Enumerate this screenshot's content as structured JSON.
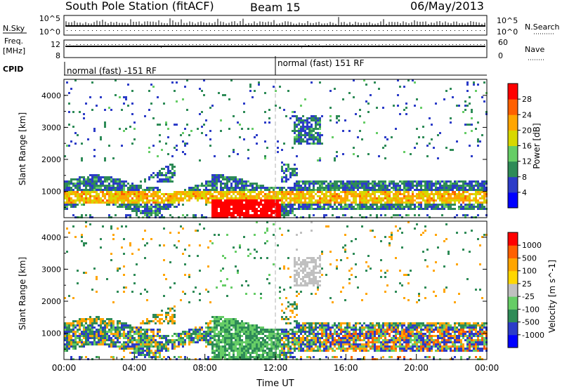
{
  "header": {
    "title": "South Pole Station (fitACF)",
    "beam": "Beam 15",
    "date": "06/May/2013"
  },
  "top_panels": {
    "nsky_label": "N.Sky",
    "nsky_ticks": [
      "10^5",
      "10^0"
    ],
    "nsearch_label": "N.Search",
    "nsearch_ticks": [
      "10^5",
      "10^0"
    ],
    "freq_label_1": "Freq.",
    "freq_label_2": "[MHz]",
    "freq_ticks": [
      "12",
      "8"
    ],
    "nave_label": "Nave",
    "nave_ticks": [
      "60",
      "0"
    ],
    "cpid_label": "CPID",
    "cpid_segments": [
      {
        "label": "normal (fast) -151 RF",
        "start_hour": 0
      },
      {
        "label": "normal (fast) 151 RF",
        "start_hour": 12
      }
    ]
  },
  "chart_data": [
    {
      "type": "heatmap",
      "panel": "power",
      "xlabel": "",
      "ylabel": "Slant Range [km]",
      "x_domain_hours": [
        0,
        24
      ],
      "ylim": [
        180,
        4500
      ],
      "yticks": [
        "1000",
        "2000",
        "3000",
        "4000"
      ],
      "colorbar_label": "Power [dB]",
      "colorbar_ticks": [
        "28",
        "24",
        "20",
        "16",
        "12",
        "8",
        "4"
      ],
      "colorbar_colors": [
        "#0000ff",
        "#2c3cc8",
        "#2e8b57",
        "#66cd66",
        "#d8d800",
        "#ffa500",
        "#ff6000",
        "#ff0000"
      ]
    },
    {
      "type": "heatmap",
      "panel": "velocity",
      "xlabel": "Time UT",
      "ylabel": "Slant Range [km]",
      "x_domain_hours": [
        0,
        24
      ],
      "ylim": [
        180,
        4500
      ],
      "yticks": [
        "1000",
        "2000",
        "3000",
        "4000"
      ],
      "xticks": [
        "00:00",
        "04:00",
        "08:00",
        "12:00",
        "16:00",
        "20:00",
        "00:00"
      ],
      "colorbar_label": "Velocity [m s^-1]",
      "colorbar_ticks": [
        "1000",
        "500",
        "100",
        "25",
        "-25",
        "-100",
        "-500",
        "-1000"
      ],
      "colorbar_colors": [
        "#0000ff",
        "#2c3cc8",
        "#2e8b57",
        "#66cd66",
        "#c0c0c0",
        "#ffd700",
        "#ffa500",
        "#ff6000",
        "#ff0000"
      ]
    }
  ]
}
